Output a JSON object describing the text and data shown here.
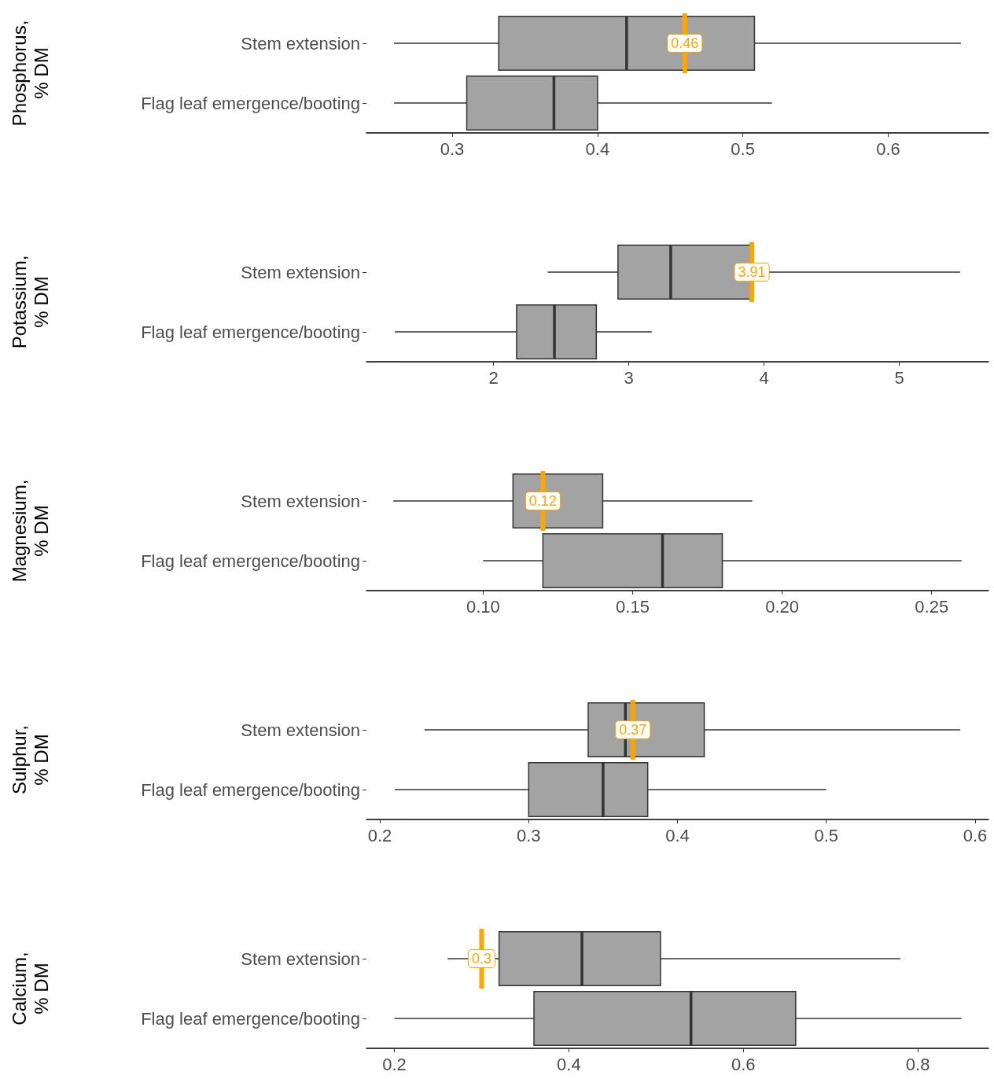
{
  "chart_data": [
    {
      "type": "box",
      "orientation": "horizontal",
      "ylabel": "Phosphorus,\n% DM",
      "categories": [
        "Stem extension",
        "Flag leaf emergence/booting"
      ],
      "color": "#a3a3a3",
      "grid": false,
      "xlim": [
        0.241,
        0.669
      ],
      "xticks": [
        0.3,
        0.4,
        0.5,
        0.6
      ],
      "boxes": [
        {
          "low": 0.26,
          "q1": 0.332,
          "median": 0.42,
          "q3": 0.508,
          "high": 0.65
        },
        {
          "low": 0.26,
          "q1": 0.31,
          "median": 0.37,
          "q3": 0.4,
          "high": 0.52
        }
      ],
      "ref_lines": [
        {
          "axis": "x",
          "value": 0.46,
          "label": "0.46",
          "color": "#ffa500"
        }
      ]
    },
    {
      "type": "box",
      "orientation": "horizontal",
      "ylabel": "Potassium,\n% DM",
      "categories": [
        "Stem extension",
        "Flag leaf emergence/booting"
      ],
      "color": "#a3a3a3",
      "grid": false,
      "xlim": [
        1.06,
        5.66
      ],
      "xticks": [
        2,
        3,
        4,
        5
      ],
      "boxes": [
        {
          "low": 2.4,
          "q1": 2.92,
          "median": 3.31,
          "q3": 3.9,
          "high": 5.45
        },
        {
          "low": 1.27,
          "q1": 2.17,
          "median": 2.45,
          "q3": 2.76,
          "high": 3.17
        }
      ],
      "ref_lines": [
        {
          "axis": "x",
          "value": 3.91,
          "label": "3.91",
          "color": "#ffa500"
        }
      ]
    },
    {
      "type": "box",
      "orientation": "horizontal",
      "ylabel": "Magnesium,\n% DM",
      "categories": [
        "Stem extension",
        "Flag leaf emergence/booting"
      ],
      "color": "#a3a3a3",
      "grid": false,
      "xlim": [
        0.061,
        0.269
      ],
      "xticks": [
        {
          "value": 0.1,
          "label": "0.10"
        },
        {
          "value": 0.15,
          "label": "0.15"
        },
        {
          "value": 0.2,
          "label": "0.20"
        },
        {
          "value": 0.25,
          "label": "0.25"
        }
      ],
      "boxes": [
        {
          "low": 0.07,
          "q1": 0.11,
          "median": 0.12,
          "q3": 0.14,
          "high": 0.19
        },
        {
          "low": 0.1,
          "q1": 0.12,
          "median": 0.16,
          "q3": 0.18,
          "high": 0.26
        }
      ],
      "ref_lines": [
        {
          "axis": "x",
          "value": 0.12,
          "label": "0.12",
          "color": "#ffa500"
        }
      ]
    },
    {
      "type": "box",
      "orientation": "horizontal",
      "ylabel": "Sulphur,\n% DM",
      "categories": [
        "Stem extension",
        "Flag leaf emergence/booting"
      ],
      "color": "#a3a3a3",
      "grid": false,
      "xlim": [
        0.191,
        0.609
      ],
      "xticks": [
        0.2,
        0.3,
        0.4,
        0.5,
        0.6
      ],
      "boxes": [
        {
          "low": 0.23,
          "q1": 0.34,
          "median": 0.365,
          "q3": 0.418,
          "high": 0.59
        },
        {
          "low": 0.21,
          "q1": 0.3,
          "median": 0.35,
          "q3": 0.38,
          "high": 0.5
        }
      ],
      "ref_lines": [
        {
          "axis": "x",
          "value": 0.37,
          "label": "0.37",
          "color": "#ffa500"
        }
      ]
    },
    {
      "type": "box",
      "orientation": "horizontal",
      "ylabel": "Calcium,\n% DM",
      "categories": [
        "Stem extension",
        "Flag leaf emergence/booting"
      ],
      "color": "#a3a3a3",
      "grid": false,
      "xlim": [
        0.168,
        0.881
      ],
      "xticks": [
        0.2,
        0.4,
        0.6,
        0.8
      ],
      "boxes": [
        {
          "low": 0.261,
          "q1": 0.32,
          "median": 0.415,
          "q3": 0.505,
          "high": 0.78
        },
        {
          "low": 0.2,
          "q1": 0.36,
          "median": 0.54,
          "q3": 0.66,
          "high": 0.85
        }
      ],
      "ref_lines": [
        {
          "axis": "x",
          "value": 0.3,
          "label": "0.3",
          "color": "#ffa500"
        }
      ]
    }
  ]
}
